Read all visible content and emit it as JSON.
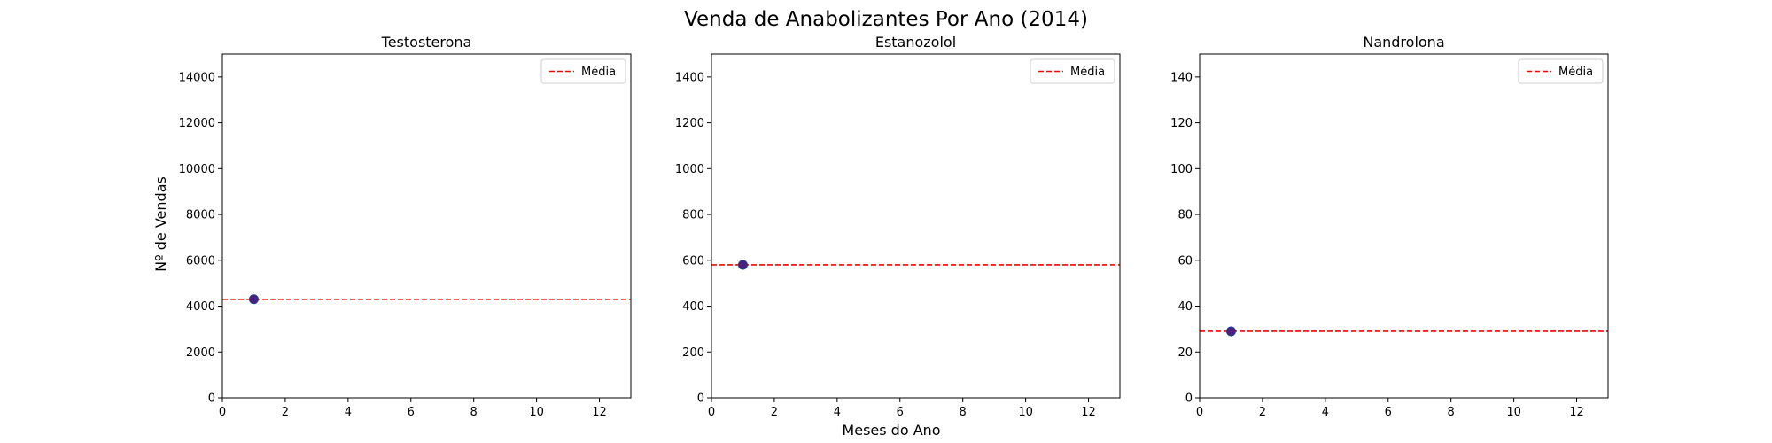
{
  "figure": {
    "title": "Venda de Anabolizantes Por Ano (2014)",
    "xlabel": "Meses do Ano",
    "ylabel": "Nº de Vendas"
  },
  "colors": {
    "point_fill": "#4b1f7e",
    "point_edge": "#1f3f8a",
    "mean_line": "#ff0000"
  },
  "chart_data": [
    {
      "type": "scatter",
      "title": "Testosterona",
      "points": [
        {
          "x": 1,
          "y": 4300
        }
      ],
      "mean": 4300,
      "legend": {
        "label": "Média",
        "placement": "top-right"
      },
      "xlim": [
        0,
        13
      ],
      "ylim": [
        0,
        15000
      ],
      "xticks": [
        0,
        2,
        4,
        6,
        8,
        10,
        12
      ],
      "yticks": [
        0,
        2000,
        4000,
        6000,
        8000,
        10000,
        12000,
        14000
      ]
    },
    {
      "type": "scatter",
      "title": "Estanozolol",
      "points": [
        {
          "x": 1,
          "y": 580
        }
      ],
      "mean": 580,
      "legend": {
        "label": "Média",
        "placement": "top-right"
      },
      "xlim": [
        0,
        13
      ],
      "ylim": [
        0,
        1500
      ],
      "xticks": [
        0,
        2,
        4,
        6,
        8,
        10,
        12
      ],
      "yticks": [
        0,
        200,
        400,
        600,
        800,
        1000,
        1200,
        1400
      ]
    },
    {
      "type": "scatter",
      "title": "Nandrolona",
      "points": [
        {
          "x": 1,
          "y": 29
        }
      ],
      "mean": 29,
      "legend": {
        "label": "Média",
        "placement": "top-right"
      },
      "xlim": [
        0,
        13
      ],
      "ylim": [
        0,
        150
      ],
      "xticks": [
        0,
        2,
        4,
        6,
        8,
        10,
        12
      ],
      "yticks": [
        0,
        20,
        40,
        60,
        80,
        100,
        120,
        140
      ]
    }
  ]
}
